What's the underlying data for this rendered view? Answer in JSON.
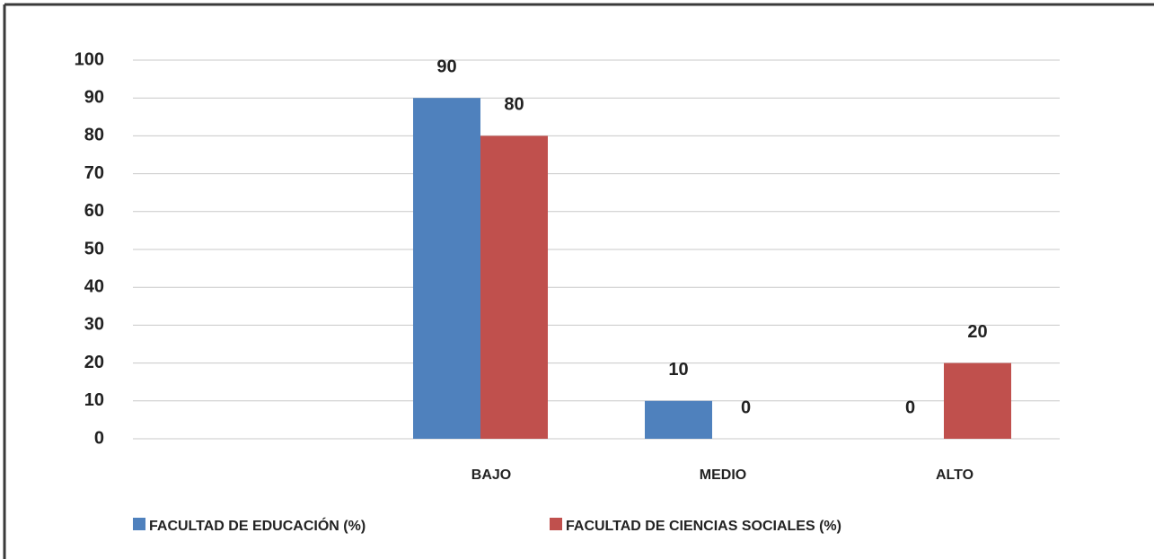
{
  "chart_data": {
    "type": "bar",
    "categories": [
      null,
      "BAJO",
      "MEDIO",
      "ALTO"
    ],
    "series": [
      {
        "name": "FACULTAD DE EDUCACIÓN (%)",
        "color": "#4f81bd",
        "values": [
          null,
          90,
          10,
          0
        ]
      },
      {
        "name": "FACULTAD DE CIENCIAS SOCIALES (%)",
        "color": "#c0504d",
        "values": [
          null,
          80,
          0,
          20
        ]
      }
    ],
    "ylim": [
      0,
      100
    ],
    "yticks": [
      0,
      10,
      20,
      30,
      40,
      50,
      60,
      70,
      80,
      90,
      100
    ],
    "grid": true,
    "legend": "bottom"
  }
}
